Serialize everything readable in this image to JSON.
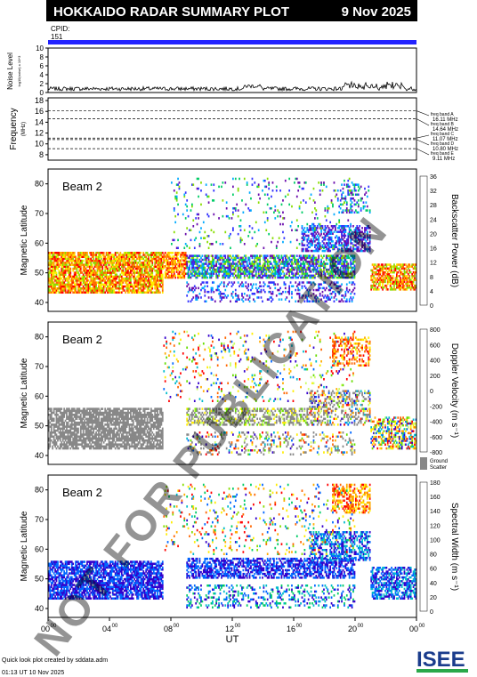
{
  "header": {
    "title": "HOKKAIDO RADAR SUMMARY PLOT",
    "date": "9 Nov 2025",
    "cpid_label": "CPID:",
    "cpid_value": "151"
  },
  "noise_panel": {
    "ylabel": "Noise Level",
    "ylabel_sub": "log10(noise) x 10^3",
    "yticks": [
      "0",
      "2",
      "4",
      "6",
      "8",
      "10"
    ]
  },
  "freq_panel": {
    "ylabel": "Frequency",
    "ylabel_unit": "(MHz)",
    "yticks": [
      "8",
      "10",
      "12",
      "14",
      "16",
      "18"
    ],
    "bands": [
      {
        "name": "freq band A",
        "freq": "16.11 MHz",
        "mhz": 16.11
      },
      {
        "name": "freq band B",
        "freq": "14.64 MHz",
        "mhz": 14.64
      },
      {
        "name": "freq band C",
        "freq": "11.07 MHz",
        "mhz": 11.07
      },
      {
        "name": "freq band D",
        "freq": "10.80 MHz",
        "mhz": 10.8
      },
      {
        "name": "freq band E",
        "freq": "9.11 MHz",
        "mhz": 9.11
      }
    ]
  },
  "panels": [
    {
      "beam_label": "Beam  2",
      "ylabel": "Magnetic Latitude",
      "yticks": [
        "40",
        "50",
        "60",
        "70",
        "80"
      ],
      "cbar_label": "Backscatter Power (dB)",
      "cbar_ticks": [
        "0",
        "4",
        "8",
        "12",
        "16",
        "20",
        "24",
        "28",
        "32",
        "36"
      ],
      "cbar_colors": [
        "#6a0dad",
        "#3333ff",
        "#00aaff",
        "#00cc66",
        "#88dd00",
        "#ffee00",
        "#ffaa00",
        "#ff6600",
        "#ff0000"
      ]
    },
    {
      "beam_label": "Beam  2",
      "ylabel": "Magnetic Latitude",
      "yticks": [
        "40",
        "50",
        "60",
        "70",
        "80"
      ],
      "cbar_label": "Doppler Velocity (m s⁻¹)",
      "cbar_ticks": [
        "-800",
        "-600",
        "-400",
        "-200",
        "0",
        "200",
        "400",
        "600",
        "800"
      ],
      "cbar_colors": [
        "#ff0000",
        "#ff6600",
        "#ffaa00",
        "#ffee00",
        "#ccff66",
        "#66dd00",
        "#00bbcc",
        "#0066ff",
        "#3300cc"
      ],
      "ground_label_1": "Ground",
      "ground_label_2": "Scatter"
    },
    {
      "beam_label": "Beam  2",
      "ylabel": "Magnetic Latitude",
      "yticks": [
        "40",
        "50",
        "60",
        "70",
        "80"
      ],
      "cbar_label": "Spectral Width (m s⁻¹)",
      "cbar_ticks": [
        "0",
        "20",
        "40",
        "60",
        "80",
        "100",
        "120",
        "140",
        "160",
        "180"
      ],
      "cbar_colors": [
        "#3300cc",
        "#0066ff",
        "#00bbcc",
        "#00cc66",
        "#88dd00",
        "#ffee00",
        "#ffaa00",
        "#ff6600",
        "#ff0000"
      ]
    }
  ],
  "xaxis": {
    "label": "UT",
    "ticks": [
      {
        "h": "00",
        "m": "00"
      },
      {
        "h": "04",
        "m": "00"
      },
      {
        "h": "08",
        "m": "00"
      },
      {
        "h": "12",
        "m": "00"
      },
      {
        "h": "16",
        "m": "00"
      },
      {
        "h": "20",
        "m": "00"
      },
      {
        "h": "00",
        "m": "00"
      }
    ]
  },
  "footer": {
    "credit": "Quick look plot created by sddata.adm",
    "timestamp": "01:13 UT 10 Nov 2025",
    "logo": "ISEE"
  },
  "watermark": "NOT FOR PUBLICATION",
  "chart_data": [
    {
      "type": "line",
      "title": "Noise Level",
      "xlabel": "UT",
      "ylim": [
        0,
        10
      ],
      "x_range_hours": [
        0,
        24
      ]
    },
    {
      "type": "line",
      "title": "Frequency",
      "ylabel": "Frequency (MHz)",
      "ylim": [
        7,
        18
      ],
      "series": [
        {
          "name": "freq band",
          "values": [
            16.11,
            14.64,
            11.07,
            10.8,
            9.11
          ]
        }
      ]
    },
    {
      "type": "heatmap",
      "ylabel": "Magnetic Latitude",
      "ylim": [
        37,
        85
      ],
      "x_range_hours": [
        0,
        24
      ],
      "colorbar": "Backscatter Power (dB)",
      "crange": [
        0,
        36
      ]
    },
    {
      "type": "heatmap",
      "ylabel": "Magnetic Latitude",
      "ylim": [
        37,
        85
      ],
      "x_range_hours": [
        0,
        24
      ],
      "colorbar": "Doppler Velocity (m s-1)",
      "crange": [
        -800,
        800
      ]
    },
    {
      "type": "heatmap",
      "ylabel": "Magnetic Latitude",
      "ylim": [
        37,
        85
      ],
      "x_range_hours": [
        0,
        24
      ],
      "colorbar": "Spectral Width (m s-1)",
      "crange": [
        0,
        180
      ]
    }
  ]
}
